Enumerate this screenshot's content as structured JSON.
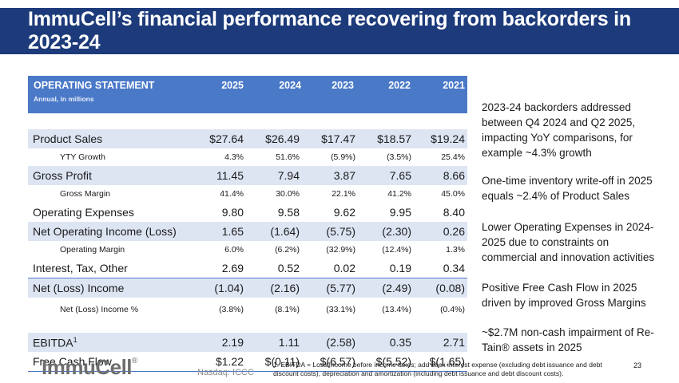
{
  "title": "ImmuCell’s financial performance recovering from backorders in 2023-24",
  "table": {
    "header": "OPERATING STATEMENT",
    "subheader": "Annual, in millions",
    "years": [
      "2025",
      "2024",
      "2023",
      "2022",
      "2021"
    ],
    "rows": [
      {
        "label": "Product Sales",
        "values": [
          "$27.64",
          "$26.49",
          "$17.47",
          "$18.57",
          "$19.24"
        ]
      },
      {
        "label": "YTY Growth",
        "values": [
          "4.3%",
          "51.6%",
          "(5.9%)",
          "(3.5%)",
          "25.4%"
        ]
      },
      {
        "label": "Gross Profit",
        "values": [
          "11.45",
          "7.94",
          "3.87",
          "7.65",
          "8.66"
        ]
      },
      {
        "label": "Gross Margin",
        "values": [
          "41.4%",
          "30.0%",
          "22.1%",
          "41.2%",
          "45.0%"
        ]
      },
      {
        "label": "Operating Expenses",
        "values": [
          "9.80",
          "9.58",
          "9.62",
          "9.95",
          "8.40"
        ]
      },
      {
        "label": "Net Operating Income (Loss)",
        "values": [
          "1.65",
          "(1.64)",
          "(5.75)",
          "(2.30)",
          "0.26"
        ]
      },
      {
        "label": "Operating Margin",
        "values": [
          "6.0%",
          "(6.2%)",
          "(32.9%)",
          "(12.4%)",
          "1.3%"
        ]
      },
      {
        "label": "Interest, Tax, Other",
        "values": [
          "2.69",
          "0.52",
          "0.02",
          "0.19",
          "0.34"
        ]
      },
      {
        "label": "Net (Loss) Income",
        "values": [
          "(1.04)",
          "(2.16)",
          "(5.77)",
          "(2.49)",
          "(0.08)"
        ]
      },
      {
        "label": "Net (Loss) Income %",
        "values": [
          "(3.8%)",
          "(8.1%)",
          "(33.1%)",
          "(13.4%)",
          "(0.4%)"
        ]
      },
      {
        "label": "EBITDA",
        "label_sup": "1",
        "values": [
          "2.19",
          "1.11",
          "(2.58)",
          "0.35",
          "2.71"
        ]
      },
      {
        "label": "Free Cash Flow",
        "values": [
          "$1.22",
          "$(0.11)",
          "$(6.57)",
          "$(5.52)",
          "$(1.65)"
        ]
      }
    ]
  },
  "notes": [
    "2023-24 backorders addressed between Q4 2024 and Q2 2025, impacting YoY comparisons, for example ~4.3% growth",
    "One-time inventory write-off in 2025 equals ~2.4% of Product Sales",
    "Lower Operating Expenses in 2024-2025 due to constraints on commercial and innovation activities",
    "Positive Free Cash Flow in 2025 driven by improved Gross Margins",
    "~$2.7M non-cash impairment of Re-Tain® assets in 2025"
  ],
  "footer": {
    "logo": "ImmuCell",
    "logo_mark": "®",
    "ticker": "Nasdaq: ICCC",
    "footnote": "1. EBITDA = Loss/Income before income taxes; add back interest expense (excluding debt issuance and debt discount costs), depreciation and amortization (including debt issuance and debt discount costs).",
    "page": "23"
  }
}
